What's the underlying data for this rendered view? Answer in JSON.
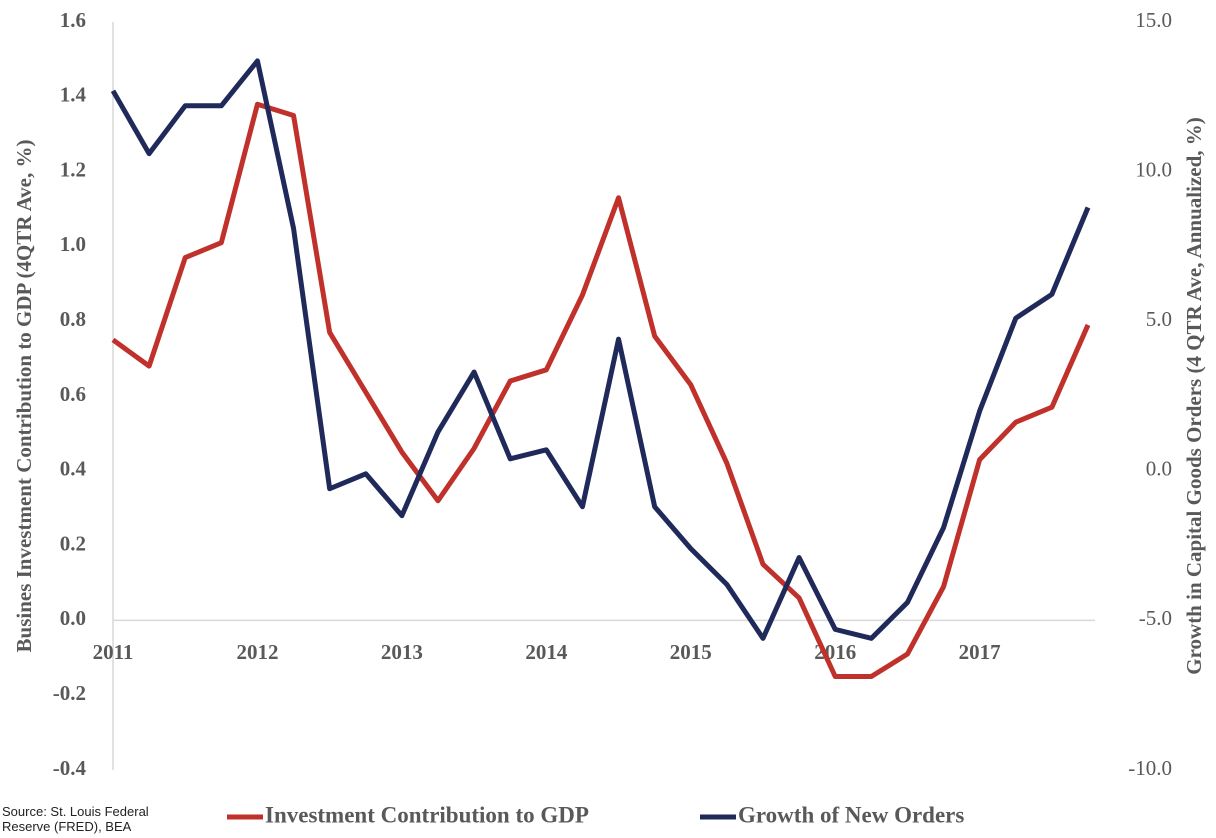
{
  "chart_data": {
    "type": "line",
    "y_label": "Busines Investment Contribution to GDP (4QTR Ave, %)",
    "y2_label": "Growth in Capital Goods Orders (4 QTR Ave, Annualized, %)",
    "source": "Source: St. Louis Federal Reserve (FRED), BEA",
    "categories": [
      "2011",
      null,
      null,
      null,
      "2012",
      null,
      null,
      null,
      "2013",
      null,
      null,
      null,
      "2014",
      null,
      null,
      null,
      "2015",
      null,
      null,
      null,
      "2016",
      null,
      null,
      null,
      "2017",
      null,
      null,
      null
    ],
    "series": [
      {
        "name": "Investment Contribution to GDP",
        "color": "#c0312b",
        "axis": "y",
        "values": [
          0.75,
          0.68,
          0.97,
          1.01,
          1.38,
          1.35,
          0.77,
          0.61,
          0.45,
          0.32,
          0.46,
          0.64,
          0.67,
          0.87,
          1.13,
          0.76,
          0.63,
          0.42,
          0.15,
          0.06,
          -0.15,
          -0.15,
          -0.09,
          0.09,
          0.43,
          0.53,
          0.57,
          0.79
        ]
      },
      {
        "name": "Growth of New Orders",
        "color": "#1f2a5a",
        "axis": "y2",
        "values": [
          12.7,
          10.6,
          12.2,
          12.2,
          13.7,
          8.1,
          -0.6,
          -0.1,
          -1.5,
          1.3,
          3.3,
          0.4,
          0.7,
          -1.2,
          4.4,
          -1.2,
          -2.6,
          -3.8,
          -5.6,
          -2.9,
          -5.3,
          -5.6,
          -4.4,
          -1.9,
          2.0,
          5.1,
          5.9,
          8.8
        ]
      }
    ],
    "ylim": [
      -0.4,
      1.6
    ],
    "yticks": [
      {
        "value": -0.4,
        "label": "-0.4"
      },
      {
        "value": -0.2,
        "label": "-0.2"
      },
      {
        "value": 0,
        "label": "0.0"
      },
      0.2,
      0.4,
      0.6,
      0.8,
      {
        "value": 1,
        "label": "1.0"
      },
      1.2,
      1.4,
      1.6
    ],
    "y2lim": [
      -10,
      15
    ],
    "y2ticks": [
      {
        "value": -10,
        "label": "-10.0"
      },
      {
        "value": -5,
        "label": "-5.0"
      },
      {
        "value": 0,
        "label": "0.0"
      },
      {
        "value": 5,
        "label": "5.0"
      },
      {
        "value": 10,
        "label": "10.0"
      },
      {
        "value": 15,
        "label": "15.0"
      }
    ],
    "grid": false,
    "legend": "bottom"
  }
}
